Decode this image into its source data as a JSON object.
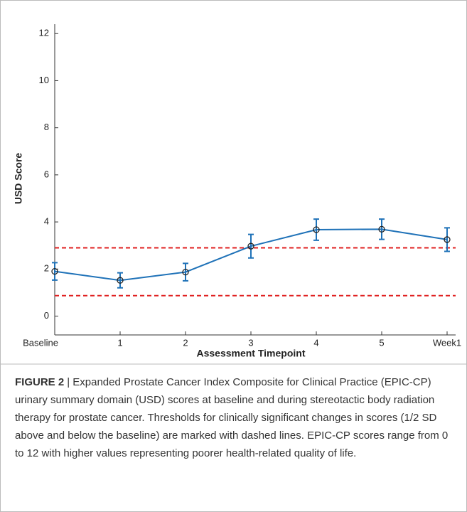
{
  "chart_data": {
    "type": "line",
    "xlabel": "Assessment Timepoint",
    "ylabel": "USD Score",
    "categories": [
      "Baseline",
      "1",
      "2",
      "3",
      "4",
      "5",
      "Week1"
    ],
    "values": [
      1.9,
      1.52,
      1.87,
      2.97,
      3.67,
      3.69,
      3.25
    ],
    "errors": [
      0.37,
      0.32,
      0.37,
      0.5,
      0.45,
      0.43,
      0.5
    ],
    "color": "#1f72b8",
    "ylim": [
      -0.8,
      12.4
    ],
    "yticks": [
      0,
      2,
      4,
      6,
      8,
      10,
      12
    ],
    "reference_lines": {
      "values": [
        2.9,
        0.87
      ],
      "color": "#e02020",
      "style": "dashed"
    }
  },
  "caption": {
    "label": "FIGURE 2",
    "text": "| Expanded Prostate Cancer Index Composite for Clinical Practice (EPIC-CP) urinary summary domain (USD) scores at baseline and during stereotactic body radiation therapy for prostate cancer. Thresholds for clinically significant changes in scores (1/2 SD above and below the baseline) are marked with dashed lines. EPIC-CP scores range from 0 to 12 with higher values representing poorer health-related quality of life."
  }
}
